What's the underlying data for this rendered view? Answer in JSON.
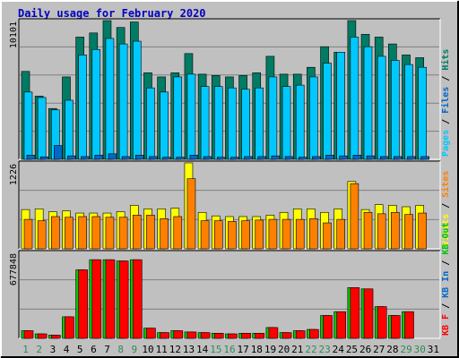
{
  "colors": {
    "background": "#c0c0c0",
    "border_light": "#ffffff",
    "border_dark": "#000000",
    "title": "#0000c0",
    "grid": "#808080",
    "hits": "#007b64",
    "files": "#00c8ff",
    "pages": "#0068c8",
    "visits": "#ffff00",
    "sites": "#ff8000",
    "kb_f": "#ff0000",
    "kb_in": "#0068c8",
    "kb_out": "#00c800",
    "day_weekend": "#2e8b57",
    "day_weekday": "#000000"
  },
  "chart_data": {
    "type": "bar",
    "title": "Daily usage for February 2020",
    "categories": [
      "1",
      "2",
      "3",
      "4",
      "5",
      "6",
      "7",
      "8",
      "9",
      "10",
      "11",
      "12",
      "13",
      "14",
      "15",
      "16",
      "17",
      "18",
      "19",
      "20",
      "21",
      "22",
      "23",
      "24",
      "25",
      "26",
      "27",
      "28",
      "29",
      "30",
      "31"
    ],
    "weekend_days": [
      "1",
      "2",
      "8",
      "9",
      "15",
      "16",
      "22",
      "23",
      "29",
      "30"
    ],
    "panels": [
      {
        "name": "hits-files-pages",
        "max_label": "10101",
        "ymax": 10101,
        "legend": [
          {
            "text": "Pages",
            "color": "#00c8ff"
          },
          {
            "text": " / ",
            "color": "#000000"
          },
          {
            "text": "Files",
            "color": "#0068c8"
          },
          {
            "text": " / ",
            "color": "#000000"
          },
          {
            "text": "Hits",
            "color": "#007b64"
          }
        ],
        "series": [
          {
            "name": "Hits",
            "color": "#007b64",
            "values": [
              6400,
              4600,
              3700,
              6000,
              8900,
              9200,
              10101,
              9600,
              10000,
              6300,
              6000,
              6300,
              7700,
              6200,
              6100,
              6000,
              6100,
              6300,
              7500,
              6200,
              6200,
              6700,
              8200,
              7800,
              10101,
              9100,
              8900,
              8400,
              7600,
              7400,
              null
            ]
          },
          {
            "name": "Files",
            "color": "#00c8ff",
            "values": [
              4900,
              4500,
              3600,
              4300,
              7600,
              8000,
              8800,
              8400,
              8600,
              5200,
              4900,
              6000,
              6200,
              5300,
              5300,
              5200,
              5100,
              5200,
              6000,
              5300,
              5400,
              6000,
              7000,
              7800,
              8900,
              8200,
              7500,
              7200,
              6900,
              6700,
              null
            ]
          },
          {
            "name": "Pages",
            "color": "#0068c8",
            "values": [
              300,
              180,
              1000,
              250,
              200,
              300,
              400,
              200,
              300,
              200,
              150,
              150,
              300,
              200,
              150,
              150,
              200,
              200,
              250,
              200,
              150,
              200,
              300,
              250,
              300,
              250,
              200,
              200,
              200,
              200,
              null
            ]
          }
        ]
      },
      {
        "name": "visits-sites",
        "max_label": "1226",
        "ymax": 1226,
        "legend": [
          {
            "text": "Visits",
            "color": "#ffff00"
          },
          {
            "text": " / ",
            "color": "#000000"
          },
          {
            "text": "Sites",
            "color": "#ff8000"
          }
        ],
        "series": [
          {
            "name": "Visits",
            "color": "#ffff00",
            "values": [
              560,
              570,
              530,
              540,
              510,
              510,
              510,
              530,
              620,
              570,
              570,
              580,
              1226,
              520,
              470,
              460,
              460,
              460,
              480,
              520,
              570,
              570,
              520,
              570,
              960,
              560,
              630,
              620,
              600,
              620,
              null
            ]
          },
          {
            "name": "Sites",
            "color": "#ff8000",
            "values": [
              420,
              400,
              460,
              450,
              460,
              460,
              450,
              450,
              480,
              480,
              430,
              460,
              1000,
              400,
              400,
              390,
              400,
              410,
              420,
              420,
              420,
              430,
              370,
              420,
              930,
              520,
              500,
              520,
              490,
              510,
              null
            ]
          }
        ]
      },
      {
        "name": "kbf-kbin-kbout",
        "max_label": "677848",
        "ymax": 677848,
        "legend": [
          {
            "text": "KB F",
            "color": "#ff0000"
          },
          {
            "text": " / ",
            "color": "#000000"
          },
          {
            "text": "KB In",
            "color": "#0068c8"
          },
          {
            "text": " / ",
            "color": "#000000"
          },
          {
            "text": "KB Out",
            "color": "#00c800"
          }
        ],
        "series": [
          {
            "name": "KB Out",
            "color": "#00c800",
            "values": [
              60000,
              35000,
              25000,
              170000,
              540000,
              620000,
              620000,
              610000,
              620000,
              80000,
              45000,
              60000,
              50000,
              45000,
              40000,
              35000,
              40000,
              40000,
              85000,
              45000,
              60000,
              70000,
              180000,
              210000,
              400000,
              390000,
              250000,
              180000,
              210000,
              null,
              null
            ]
          },
          {
            "name": "KB F",
            "color": "#ff0000",
            "values": [
              60000,
              35000,
              25000,
              170000,
              540000,
              620000,
              620000,
              610000,
              620000,
              80000,
              45000,
              60000,
              50000,
              45000,
              40000,
              35000,
              40000,
              40000,
              85000,
              45000,
              60000,
              70000,
              180000,
              210000,
              400000,
              390000,
              250000,
              180000,
              210000,
              null,
              null
            ]
          }
        ]
      }
    ]
  }
}
